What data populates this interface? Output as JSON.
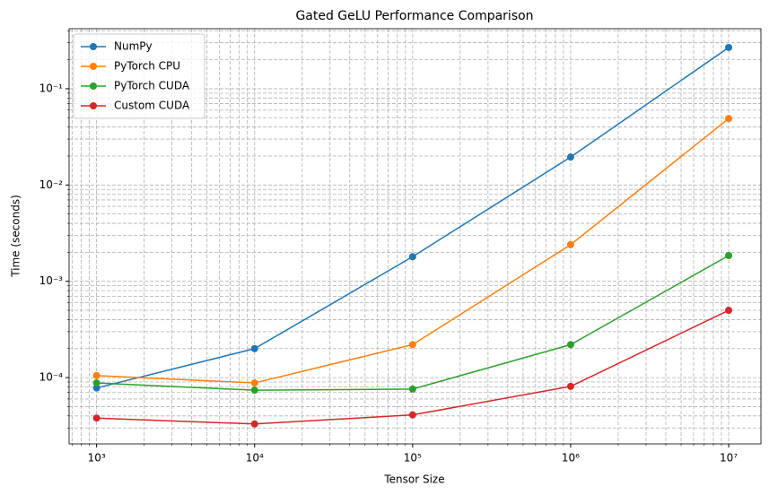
{
  "chart_data": {
    "type": "line",
    "title": "Gated GeLU Performance Comparison",
    "x_label": "Tensor Size",
    "y_label": "Time (seconds)",
    "x": [
      1000,
      10000,
      100000,
      1000000,
      10000000
    ],
    "series": [
      {
        "name": "NumPy",
        "color": "#1f77b4",
        "values": [
          7.8e-05,
          0.0002,
          0.0018,
          0.0195,
          0.268
        ]
      },
      {
        "name": "PyTorch CPU",
        "color": "#ff7f0e",
        "values": [
          0.000105,
          8.8e-05,
          0.00022,
          0.0024,
          0.049
        ]
      },
      {
        "name": "PyTorch CUDA",
        "color": "#2ca02c",
        "values": [
          8.8e-05,
          7.4e-05,
          7.6e-05,
          0.00022,
          0.00185
        ]
      },
      {
        "name": "Custom CUDA",
        "color": "#d62728",
        "values": [
          3.8e-05,
          3.3e-05,
          4.1e-05,
          8.1e-05,
          0.0005
        ]
      }
    ],
    "xlog": true,
    "ylog": true,
    "xlim": [
      670,
      16000000
    ],
    "ylim": [
      2.05e-05,
      0.42
    ],
    "xticks": [
      {
        "value": 1000,
        "label": "10³"
      },
      {
        "value": 10000,
        "label": "10⁴"
      },
      {
        "value": 100000,
        "label": "10⁵"
      },
      {
        "value": 1000000,
        "label": "10⁶"
      },
      {
        "value": 10000000,
        "label": "10⁷"
      }
    ],
    "yticks": [
      {
        "value": 0.0001,
        "label": "10⁻⁴"
      },
      {
        "value": 0.001,
        "label": "10⁻³"
      },
      {
        "value": 0.01,
        "label": "10⁻²"
      },
      {
        "value": 0.1,
        "label": "10⁻¹"
      }
    ],
    "grid": "both",
    "legend": "upper-left"
  }
}
